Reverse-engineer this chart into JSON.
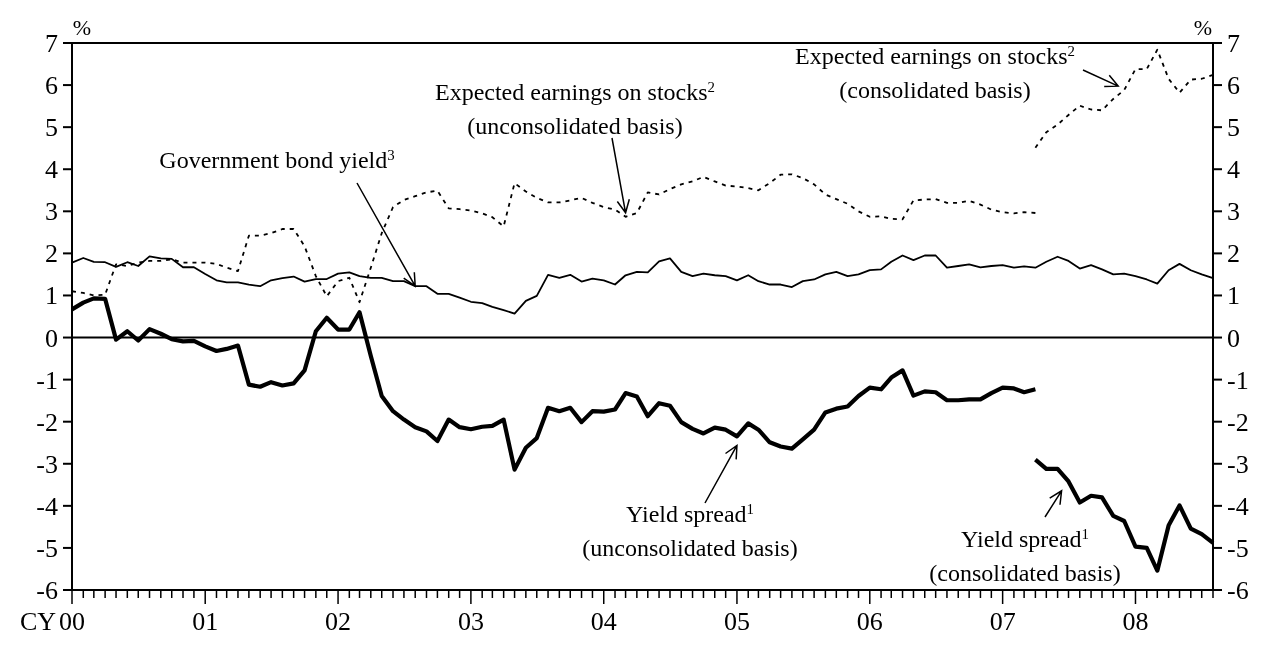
{
  "chart_data": {
    "type": "line",
    "xlabel": "CY",
    "ylabel": "%",
    "y2label": "%",
    "x": [
      "2000-01",
      "2000-02",
      "2000-03",
      "2000-04",
      "2000-05",
      "2000-06",
      "2000-07",
      "2000-08",
      "2000-09",
      "2000-10",
      "2000-11",
      "2000-12",
      "2001-01",
      "2001-02",
      "2001-03",
      "2001-04",
      "2001-05",
      "2001-06",
      "2001-07",
      "2001-08",
      "2001-09",
      "2001-10",
      "2001-11",
      "2001-12",
      "2002-01",
      "2002-02",
      "2002-03",
      "2002-04",
      "2002-05",
      "2002-06",
      "2002-07",
      "2002-08",
      "2002-09",
      "2002-10",
      "2002-11",
      "2002-12",
      "2003-01",
      "2003-02",
      "2003-03",
      "2003-04",
      "2003-05",
      "2003-06",
      "2003-07",
      "2003-08",
      "2003-09",
      "2003-10",
      "2003-11",
      "2003-12",
      "2004-01",
      "2004-02",
      "2004-03",
      "2004-04",
      "2004-05",
      "2004-06",
      "2004-07",
      "2004-08",
      "2004-09",
      "2004-10",
      "2004-11",
      "2004-12",
      "2005-01",
      "2005-02",
      "2005-03",
      "2005-04",
      "2005-05",
      "2005-06",
      "2005-07",
      "2005-08",
      "2005-09",
      "2005-10",
      "2005-11",
      "2005-12",
      "2006-01",
      "2006-02",
      "2006-03",
      "2006-04",
      "2006-05",
      "2006-06",
      "2006-07",
      "2006-08",
      "2006-09",
      "2006-10",
      "2006-11",
      "2006-12",
      "2007-01",
      "2007-02",
      "2007-03",
      "2007-04",
      "2007-05",
      "2007-06",
      "2007-07",
      "2007-08",
      "2007-09",
      "2007-10",
      "2007-11",
      "2007-12",
      "2008-01",
      "2008-02",
      "2008-03",
      "2008-04",
      "2008-05",
      "2008-06",
      "2008-07",
      "2008-08"
    ],
    "xlim": [
      "2000-01",
      "2008-08"
    ],
    "xticks": [
      {
        "value": "2000-01",
        "label": "00"
      },
      {
        "value": "2000-02",
        "label": null
      },
      {
        "value": "2000-03",
        "label": null
      },
      {
        "value": "2000-04",
        "label": null
      },
      {
        "value": "2000-05",
        "label": null
      },
      {
        "value": "2000-06",
        "label": null
      },
      {
        "value": "2000-07",
        "label": null
      },
      {
        "value": "2000-08",
        "label": null
      },
      {
        "value": "2000-09",
        "label": null
      },
      {
        "value": "2000-10",
        "label": null
      },
      {
        "value": "2000-11",
        "label": null
      },
      {
        "value": "2000-12",
        "label": null
      },
      {
        "value": "2001-01",
        "label": "01"
      },
      {
        "value": "2001-02",
        "label": null
      },
      {
        "value": "2001-03",
        "label": null
      },
      {
        "value": "2001-04",
        "label": null
      },
      {
        "value": "2001-05",
        "label": null
      },
      {
        "value": "2001-06",
        "label": null
      },
      {
        "value": "2001-07",
        "label": null
      },
      {
        "value": "2001-08",
        "label": null
      },
      {
        "value": "2001-09",
        "label": null
      },
      {
        "value": "2001-10",
        "label": null
      },
      {
        "value": "2001-11",
        "label": null
      },
      {
        "value": "2001-12",
        "label": null
      },
      {
        "value": "2002-01",
        "label": "02"
      },
      {
        "value": "2002-02",
        "label": null
      },
      {
        "value": "2002-03",
        "label": null
      },
      {
        "value": "2002-04",
        "label": null
      },
      {
        "value": "2002-05",
        "label": null
      },
      {
        "value": "2002-06",
        "label": null
      },
      {
        "value": "2002-07",
        "label": null
      },
      {
        "value": "2002-08",
        "label": null
      },
      {
        "value": "2002-09",
        "label": null
      },
      {
        "value": "2002-10",
        "label": null
      },
      {
        "value": "2002-11",
        "label": null
      },
      {
        "value": "2002-12",
        "label": null
      },
      {
        "value": "2003-01",
        "label": "03"
      },
      {
        "value": "2003-02",
        "label": null
      },
      {
        "value": "2003-03",
        "label": null
      },
      {
        "value": "2003-04",
        "label": null
      },
      {
        "value": "2003-05",
        "label": null
      },
      {
        "value": "2003-06",
        "label": null
      },
      {
        "value": "2003-07",
        "label": null
      },
      {
        "value": "2003-08",
        "label": null
      },
      {
        "value": "2003-09",
        "label": null
      },
      {
        "value": "2003-10",
        "label": null
      },
      {
        "value": "2003-11",
        "label": null
      },
      {
        "value": "2003-12",
        "label": null
      },
      {
        "value": "2004-01",
        "label": "04"
      },
      {
        "value": "2004-02",
        "label": null
      },
      {
        "value": "2004-03",
        "label": null
      },
      {
        "value": "2004-04",
        "label": null
      },
      {
        "value": "2004-05",
        "label": null
      },
      {
        "value": "2004-06",
        "label": null
      },
      {
        "value": "2004-07",
        "label": null
      },
      {
        "value": "2004-08",
        "label": null
      },
      {
        "value": "2004-09",
        "label": null
      },
      {
        "value": "2004-10",
        "label": null
      },
      {
        "value": "2004-11",
        "label": null
      },
      {
        "value": "2004-12",
        "label": null
      },
      {
        "value": "2005-01",
        "label": "05"
      },
      {
        "value": "2005-02",
        "label": null
      },
      {
        "value": "2005-03",
        "label": null
      },
      {
        "value": "2005-04",
        "label": null
      },
      {
        "value": "2005-05",
        "label": null
      },
      {
        "value": "2005-06",
        "label": null
      },
      {
        "value": "2005-07",
        "label": null
      },
      {
        "value": "2005-08",
        "label": null
      },
      {
        "value": "2005-09",
        "label": null
      },
      {
        "value": "2005-10",
        "label": null
      },
      {
        "value": "2005-11",
        "label": null
      },
      {
        "value": "2005-12",
        "label": null
      },
      {
        "value": "2006-01",
        "label": "06"
      },
      {
        "value": "2006-02",
        "label": null
      },
      {
        "value": "2006-03",
        "label": null
      },
      {
        "value": "2006-04",
        "label": null
      },
      {
        "value": "2006-05",
        "label": null
      },
      {
        "value": "2006-06",
        "label": null
      },
      {
        "value": "2006-07",
        "label": null
      },
      {
        "value": "2006-08",
        "label": null
      },
      {
        "value": "2006-09",
        "label": null
      },
      {
        "value": "2006-10",
        "label": null
      },
      {
        "value": "2006-11",
        "label": null
      },
      {
        "value": "2006-12",
        "label": null
      },
      {
        "value": "2007-01",
        "label": "07"
      },
      {
        "value": "2007-02",
        "label": null
      },
      {
        "value": "2007-03",
        "label": null
      },
      {
        "value": "2007-04",
        "label": null
      },
      {
        "value": "2007-05",
        "label": null
      },
      {
        "value": "2007-06",
        "label": null
      },
      {
        "value": "2007-07",
        "label": null
      },
      {
        "value": "2007-08",
        "label": null
      },
      {
        "value": "2007-09",
        "label": null
      },
      {
        "value": "2007-10",
        "label": null
      },
      {
        "value": "2007-11",
        "label": null
      },
      {
        "value": "2007-12",
        "label": null
      },
      {
        "value": "2008-01",
        "label": "08"
      },
      {
        "value": "2008-02",
        "label": null
      },
      {
        "value": "2008-03",
        "label": null
      },
      {
        "value": "2008-04",
        "label": null
      },
      {
        "value": "2008-05",
        "label": null
      },
      {
        "value": "2008-06",
        "label": null
      },
      {
        "value": "2008-07",
        "label": null
      },
      {
        "value": "2008-08",
        "label": null
      }
    ],
    "ylim": [
      -6,
      7
    ],
    "yticks": [
      -6,
      -5,
      -4,
      -3,
      -2,
      -1,
      0,
      1,
      2,
      3,
      4,
      5,
      6,
      7
    ],
    "y2lim": [
      -6,
      7
    ],
    "y2ticks": [
      -6,
      -5,
      -4,
      -3,
      -2,
      -1,
      0,
      1,
      2,
      3,
      4,
      5,
      6,
      7
    ],
    "ref_lines": [
      {
        "axis": "y",
        "value": 0,
        "color": "#000000"
      }
    ],
    "series": [
      {
        "color": "#000000",
        "line_style": "solid",
        "values": [
          1.78,
          1.89,
          1.8,
          1.79,
          1.68,
          1.79,
          1.7,
          1.93,
          1.88,
          1.87,
          1.67,
          1.67,
          1.51,
          1.36,
          1.31,
          1.31,
          1.26,
          1.22,
          1.36,
          1.41,
          1.45,
          1.33,
          1.39,
          1.39,
          1.52,
          1.55,
          1.46,
          1.42,
          1.42,
          1.34,
          1.34,
          1.22,
          1.22,
          1.04,
          1.04,
          0.95,
          0.85,
          0.82,
          0.73,
          0.65,
          0.57,
          0.87,
          0.99,
          1.49,
          1.42,
          1.49,
          1.33,
          1.4,
          1.36,
          1.26,
          1.48,
          1.56,
          1.55,
          1.81,
          1.88,
          1.56,
          1.46,
          1.52,
          1.48,
          1.46,
          1.36,
          1.48,
          1.34,
          1.26,
          1.26,
          1.2,
          1.34,
          1.38,
          1.5,
          1.56,
          1.46,
          1.5,
          1.6,
          1.62,
          1.8,
          1.95,
          1.84,
          1.95,
          1.95,
          1.66,
          1.7,
          1.74,
          1.67,
          1.7,
          1.72,
          1.66,
          1.69,
          1.66,
          1.8,
          1.92,
          1.82,
          1.64,
          1.72,
          1.62,
          1.5,
          1.52,
          1.46,
          1.38,
          1.28,
          1.6,
          1.75,
          1.6,
          1.5,
          1.41
        ]
      },
      {
        "color": "#000000",
        "line_style": "dotted",
        "values": [
          1.1,
          1.06,
          1.0,
          1.02,
          1.74,
          1.7,
          1.78,
          1.82,
          1.82,
          1.86,
          1.78,
          1.78,
          1.78,
          1.75,
          1.66,
          1.58,
          2.42,
          2.42,
          2.48,
          2.58,
          2.58,
          2.17,
          1.46,
          0.98,
          1.34,
          1.42,
          0.84,
          1.66,
          2.48,
          3.1,
          3.27,
          3.36,
          3.45,
          3.49,
          3.07,
          3.05,
          3.02,
          2.95,
          2.86,
          2.64,
          3.67,
          3.47,
          3.32,
          3.21,
          3.21,
          3.26,
          3.32,
          3.2,
          3.1,
          3.04,
          2.87,
          2.96,
          3.45,
          3.4,
          3.53,
          3.64,
          3.71,
          3.82,
          3.71,
          3.61,
          3.59,
          3.55,
          3.5,
          3.67,
          3.87,
          3.88,
          3.79,
          3.64,
          3.4,
          3.29,
          3.18,
          3.0,
          2.87,
          2.88,
          2.82,
          2.81,
          3.26,
          3.28,
          3.29,
          3.2,
          3.2,
          3.25,
          3.16,
          3.04,
          2.98,
          2.95,
          2.98,
          2.96,
          null,
          null,
          null,
          null,
          null,
          null,
          null,
          null,
          null,
          null,
          null,
          null,
          null,
          null,
          null,
          null
        ]
      },
      {
        "color": "#000000",
        "line_style": "dotted",
        "values": [
          null,
          null,
          null,
          null,
          null,
          null,
          null,
          null,
          null,
          null,
          null,
          null,
          null,
          null,
          null,
          null,
          null,
          null,
          null,
          null,
          null,
          null,
          null,
          null,
          null,
          null,
          null,
          null,
          null,
          null,
          null,
          null,
          null,
          null,
          null,
          null,
          null,
          null,
          null,
          null,
          null,
          null,
          null,
          null,
          null,
          null,
          null,
          null,
          null,
          null,
          null,
          null,
          null,
          null,
          null,
          null,
          null,
          null,
          null,
          null,
          null,
          null,
          null,
          null,
          null,
          null,
          null,
          null,
          null,
          null,
          null,
          null,
          null,
          null,
          null,
          null,
          null,
          null,
          null,
          null,
          null,
          null,
          null,
          null,
          null,
          null,
          null,
          4.51,
          4.88,
          5.06,
          5.29,
          5.51,
          5.42,
          5.4,
          5.67,
          5.88,
          6.38,
          6.38,
          6.84,
          6.15,
          5.82,
          6.13,
          6.15,
          6.24
        ]
      },
      {
        "color": "#000000",
        "line_style": "solid",
        "values": [
          0.67,
          0.83,
          0.93,
          0.92,
          -0.05,
          0.15,
          -0.07,
          0.2,
          0.09,
          -0.04,
          -0.09,
          -0.08,
          -0.21,
          -0.32,
          -0.27,
          -0.19,
          -1.12,
          -1.17,
          -1.06,
          -1.14,
          -1.09,
          -0.78,
          0.15,
          0.47,
          0.19,
          0.19,
          0.6,
          -0.44,
          -1.39,
          -1.75,
          -1.95,
          -2.13,
          -2.23,
          -2.46,
          -1.95,
          -2.13,
          -2.18,
          -2.12,
          -2.1,
          -1.95,
          -3.14,
          -2.62,
          -2.39,
          -1.67,
          -1.75,
          -1.67,
          -2.01,
          -1.75,
          -1.76,
          -1.71,
          -1.32,
          -1.4,
          -1.87,
          -1.56,
          -1.62,
          -2.01,
          -2.17,
          -2.28,
          -2.14,
          -2.19,
          -2.35,
          -2.04,
          -2.19,
          -2.49,
          -2.59,
          -2.64,
          -2.42,
          -2.19,
          -1.78,
          -1.69,
          -1.64,
          -1.39,
          -1.19,
          -1.23,
          -0.95,
          -0.78,
          -1.38,
          -1.28,
          -1.3,
          -1.49,
          -1.49,
          -1.47,
          -1.47,
          -1.32,
          -1.19,
          -1.21,
          -1.3,
          -1.23,
          null,
          null,
          null,
          null,
          null,
          null,
          null,
          null,
          null,
          null,
          null,
          null,
          null,
          null,
          null,
          null
        ]
      },
      {
        "color": "#000000",
        "line_style": "solid",
        "values": [
          null,
          null,
          null,
          null,
          null,
          null,
          null,
          null,
          null,
          null,
          null,
          null,
          null,
          null,
          null,
          null,
          null,
          null,
          null,
          null,
          null,
          null,
          null,
          null,
          null,
          null,
          null,
          null,
          null,
          null,
          null,
          null,
          null,
          null,
          null,
          null,
          null,
          null,
          null,
          null,
          null,
          null,
          null,
          null,
          null,
          null,
          null,
          null,
          null,
          null,
          null,
          null,
          null,
          null,
          null,
          null,
          null,
          null,
          null,
          null,
          null,
          null,
          null,
          null,
          null,
          null,
          null,
          null,
          null,
          null,
          null,
          null,
          null,
          null,
          null,
          null,
          null,
          null,
          null,
          null,
          null,
          null,
          null,
          null,
          null,
          null,
          null,
          -2.9,
          -3.12,
          -3.12,
          -3.42,
          -3.92,
          -3.76,
          -3.8,
          -4.24,
          -4.36,
          -4.97,
          -5.0,
          -5.54,
          -4.47,
          -3.99,
          -4.54,
          -4.67,
          -4.88
        ]
      }
    ],
    "annotations": [
      {
        "text": "Government bond yield$^{3}$",
        "x": "2002-08",
        "y": 1.22
      },
      "Expected earnings on stocks$^{2}$",
      {
        "text": "(unconsolidated basis)",
        "x": "2004-03",
        "y": 2.87
      },
      {
        "text": "Expected earnings on stocks$^{2}$",
        "x": "2007-12",
        "y": 5.88
      },
      "(consolidated basis)",
      {
        "text": "Yield spread$^{1}$",
        "x": "2005-01",
        "y": -2.35
      },
      "(unconsolidated basis)",
      {
        "text": "Yield spread$^{1}$",
        "x": "2007-06",
        "y": -3.12
      },
      "(consolidated basis)"
    ]
  }
}
